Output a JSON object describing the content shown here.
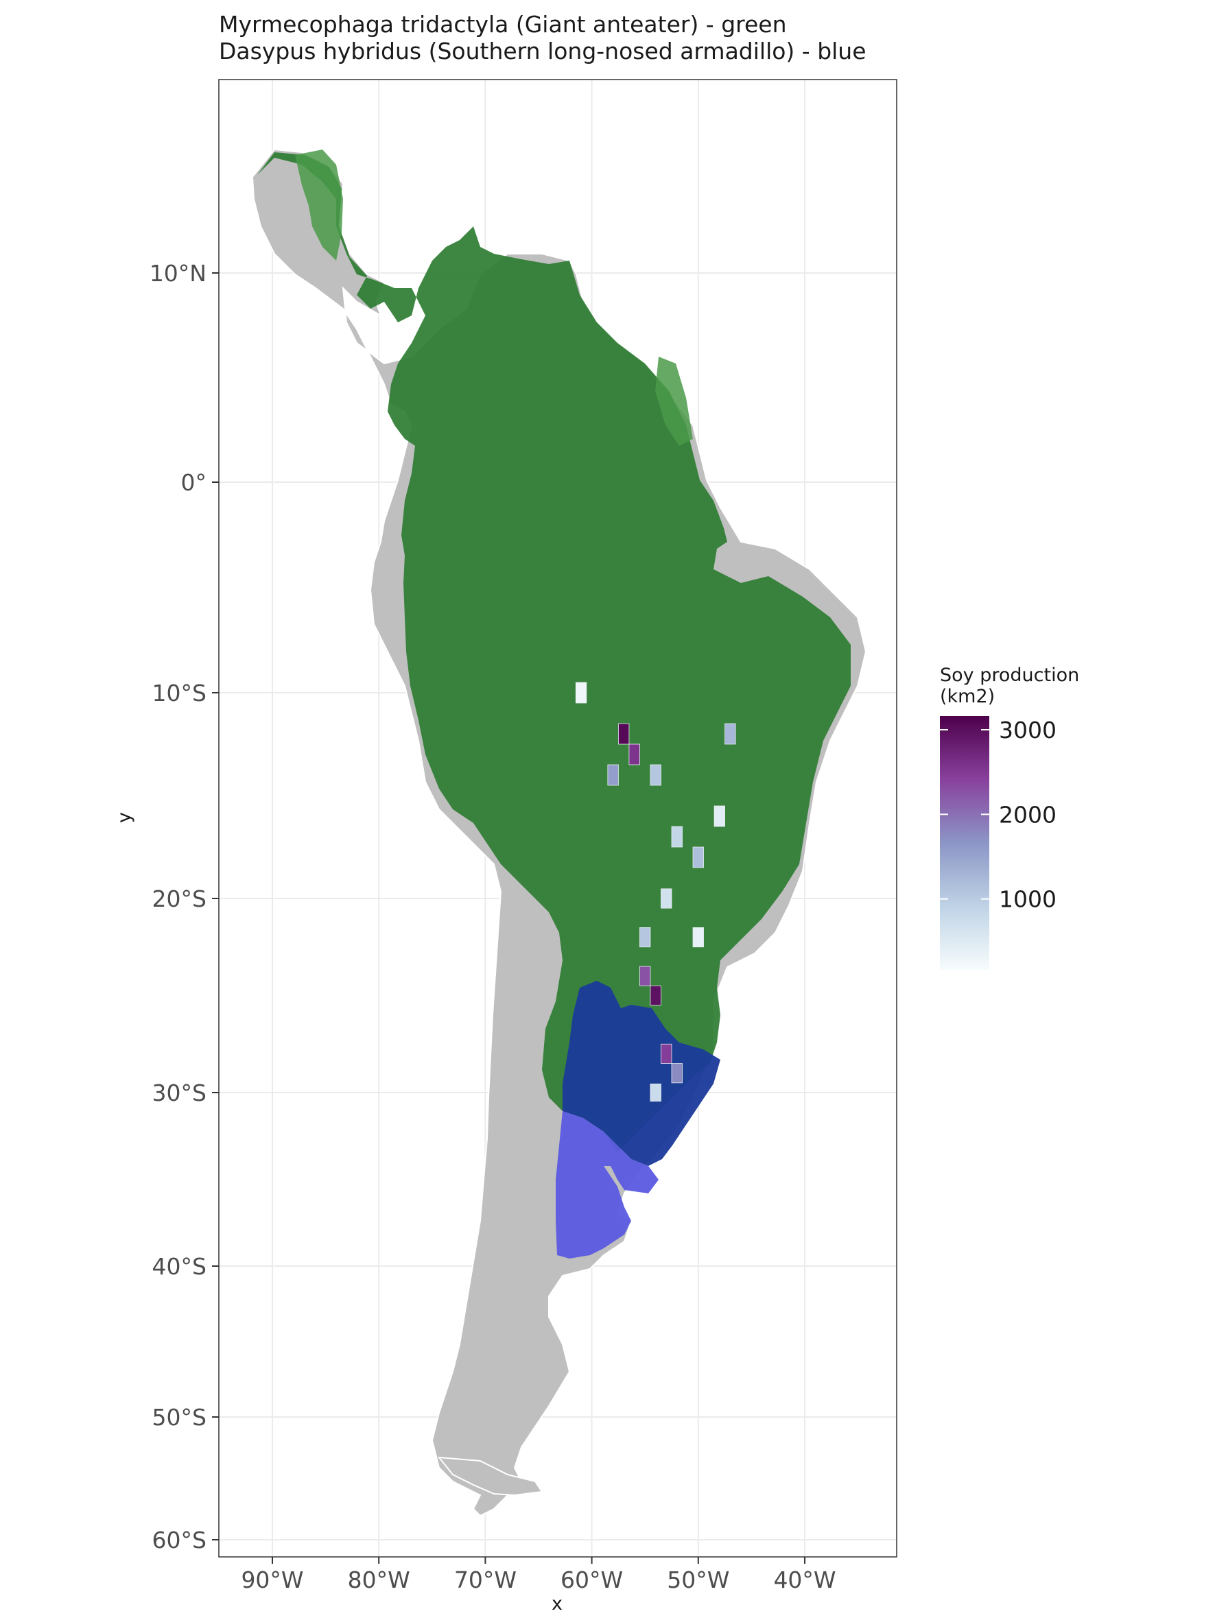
{
  "title": {
    "line1": "Myrmecophaga tridactyla (Giant anteater) - green",
    "line2": "Dasypus hybridus (Southern long-nosed armadillo) - blue"
  },
  "axes": {
    "x_title": "x",
    "y_title": "y",
    "x_ticks": [
      {
        "value": -90,
        "label": "90°W"
      },
      {
        "value": -80,
        "label": "80°W"
      },
      {
        "value": -70,
        "label": "70°W"
      },
      {
        "value": -60,
        "label": "60°W"
      },
      {
        "value": -50,
        "label": "50°W"
      },
      {
        "value": -40,
        "label": "40°W"
      }
    ],
    "y_ticks": [
      {
        "value": 10,
        "label": "10°N"
      },
      {
        "value": 0,
        "label": "0°"
      },
      {
        "value": -10,
        "label": "10°S"
      },
      {
        "value": -20,
        "label": "20°S"
      },
      {
        "value": -30,
        "label": "30°S"
      },
      {
        "value": -40,
        "label": "40°S"
      },
      {
        "value": -50,
        "label": "50°S"
      },
      {
        "value": -60,
        "label": "60°S"
      }
    ],
    "xlim": [
      -95,
      -32
    ],
    "ylim": [
      -61,
      19
    ],
    "grid": true
  },
  "legend": {
    "title_line1": "Soy production",
    "title_line2": "(km2)",
    "labels": [
      {
        "value": 3000,
        "label": "3000"
      },
      {
        "value": 2000,
        "label": "2000"
      },
      {
        "value": 1000,
        "label": "1000"
      }
    ],
    "range": [
      0,
      3000
    ],
    "placement": "right",
    "colors": [
      "#f7fcfd",
      "#bfd3e6",
      "#8c96c6",
      "#88419d",
      "#4d004b"
    ]
  },
  "layers": {
    "land_color": "#bfbfbf",
    "anteater_color": "#2e7d32",
    "anteater_range_color": "#3a7d3a",
    "armadillo_color": "#1a3a9a",
    "armadillo_light_color": "#5a5ae0"
  },
  "chart_data": {
    "type": "heatmap",
    "title": "Myrmecophaga tridactyla (Giant anteater) - green\nDasypus hybridus (Southern long-nosed armadillo) - blue",
    "xlabel": "x",
    "ylabel": "y",
    "xlim": [
      -95,
      -32
    ],
    "ylim": [
      -61,
      19
    ],
    "legend_title": "Soy production\n(km2)",
    "value_range": [
      0,
      3000
    ],
    "series": [
      {
        "name": "Myrmecophaga tridactyla (Giant anteater) - green",
        "color": "#2e7d32"
      },
      {
        "name": "Dasypus hybridus (Southern long-nosed armadillo) - blue",
        "color": "#1a3a9a"
      }
    ],
    "cells": [
      {
        "lon": -57,
        "lat": -12,
        "value": 2900
      },
      {
        "lon": -56,
        "lat": -13,
        "value": 2400
      },
      {
        "lon": -58,
        "lat": -14,
        "value": 1400
      },
      {
        "lon": -54,
        "lat": -14,
        "value": 900
      },
      {
        "lon": -47,
        "lat": -12,
        "value": 1100
      },
      {
        "lon": -52,
        "lat": -17,
        "value": 700
      },
      {
        "lon": -50,
        "lat": -18,
        "value": 1000
      },
      {
        "lon": -53,
        "lat": -20,
        "value": 500
      },
      {
        "lon": -55,
        "lat": -22,
        "value": 900
      },
      {
        "lon": -54,
        "lat": -25,
        "value": 2800
      },
      {
        "lon": -55,
        "lat": -24,
        "value": 2100
      },
      {
        "lon": -53,
        "lat": -28,
        "value": 2300
      },
      {
        "lon": -52,
        "lat": -29,
        "value": 1600
      },
      {
        "lon": -54,
        "lat": -30,
        "value": 600
      },
      {
        "lon": -48,
        "lat": -16,
        "value": 300
      },
      {
        "lon": -50,
        "lat": -22,
        "value": 200
      },
      {
        "lon": -61,
        "lat": -10,
        "value": 100
      }
    ]
  }
}
